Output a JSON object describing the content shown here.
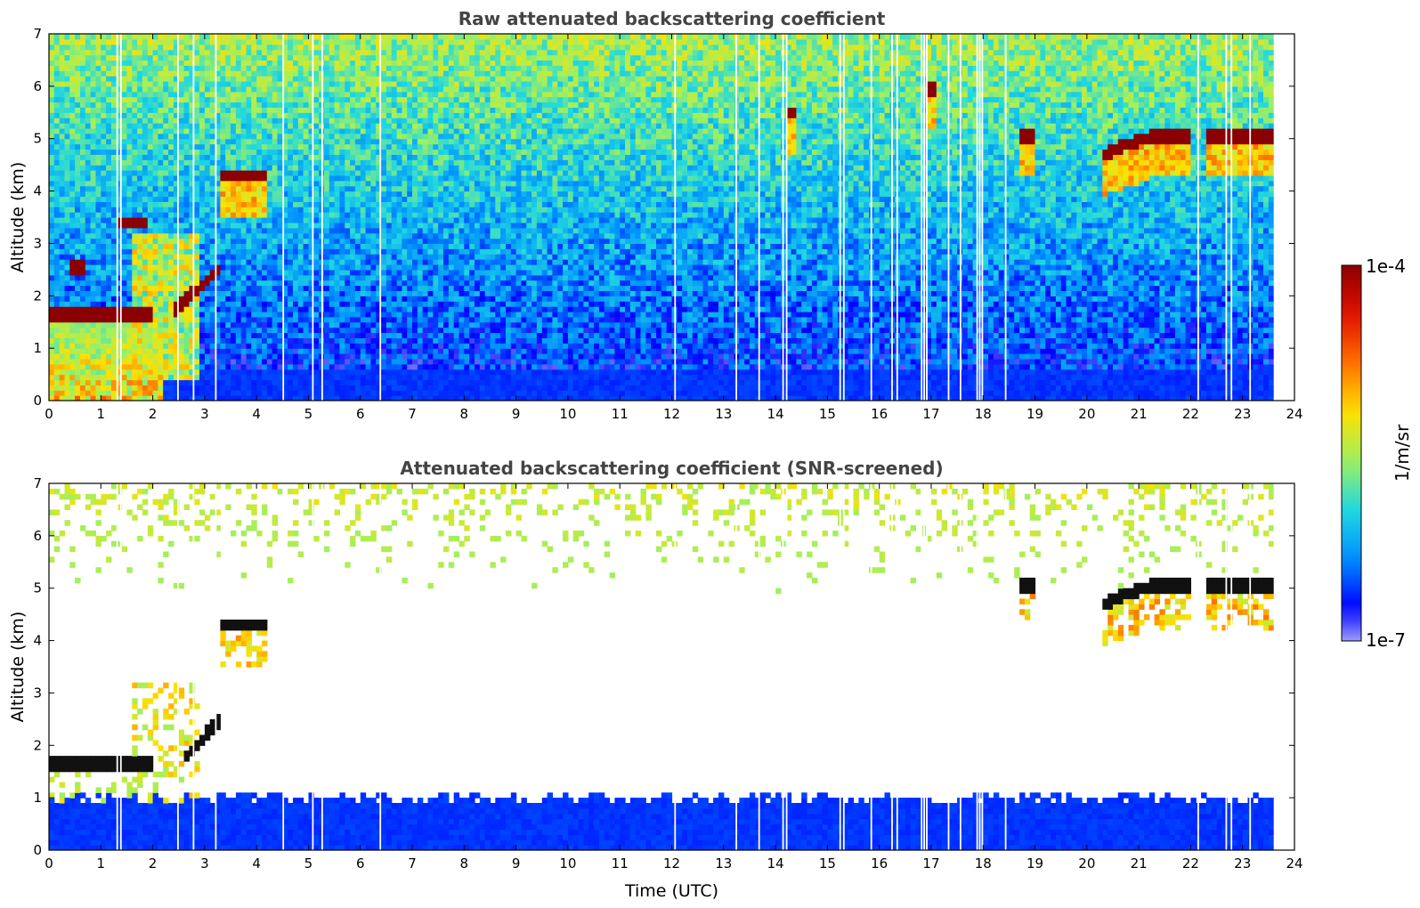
{
  "colors": {
    "scale": [
      "#e6e6f8",
      "#0000ff",
      "#0090ff",
      "#20d8e0",
      "#a0f060",
      "#ffe000",
      "#ff7000",
      "#e01000",
      "#8b0000"
    ],
    "cloud_core": "#8b0000",
    "screened_core": "#111111",
    "background": "#ffffff"
  },
  "chart_data": [
    {
      "type": "heatmap",
      "title": "Raw attenuated backscattering coefficient",
      "xlabel": "",
      "ylabel": "Altitude (km)",
      "xlim": [
        0,
        24
      ],
      "ylim": [
        0,
        7
      ],
      "xticks": [
        0,
        1,
        2,
        3,
        4,
        5,
        6,
        7,
        8,
        9,
        10,
        11,
        12,
        13,
        14,
        15,
        16,
        17,
        18,
        19,
        20,
        21,
        22,
        23,
        24
      ],
      "yticks": [
        0,
        1,
        2,
        3,
        4,
        5,
        6,
        7
      ],
      "data_end_hour": 23.6,
      "missing_profiles_hours": [
        1.3,
        1.37,
        2.47,
        2.77,
        3.2,
        4.5,
        5.07,
        5.25,
        6.37,
        12.05,
        13.23,
        13.67,
        14.13,
        14.2,
        15.23,
        15.3,
        15.83,
        16.23,
        16.33,
        16.8,
        16.85,
        16.9,
        17.32,
        17.55,
        17.87,
        17.92,
        17.97,
        18.42,
        22.13,
        22.67,
        22.77,
        23.13
      ],
      "cloud_layers": [
        {
          "t0": 0.0,
          "t1": 2.05,
          "z": 1.65,
          "intensity": "high"
        },
        {
          "t0": 2.4,
          "t1": 3.25,
          "z_start": 1.7,
          "z_end": 2.5,
          "intensity": "high"
        },
        {
          "t0": 3.3,
          "t1": 4.2,
          "z": 4.3,
          "intensity": "high"
        },
        {
          "t0": 1.3,
          "t1": 1.9,
          "z": 3.4,
          "intensity": "medium"
        },
        {
          "t0": 0.45,
          "t1": 0.65,
          "z": 2.55,
          "intensity": "medium"
        },
        {
          "t0": 18.75,
          "t1": 18.95,
          "z": 5.05,
          "intensity": "high"
        },
        {
          "t0": 20.35,
          "t1": 21.35,
          "z_start": 4.72,
          "z_end": 5.1,
          "intensity": "high"
        },
        {
          "t0": 21.35,
          "t1": 22.0,
          "z": 5.05,
          "intensity": "high"
        },
        {
          "t0": 22.3,
          "t1": 23.6,
          "z": 5.05,
          "intensity": "high"
        },
        {
          "t0": 16.9,
          "t1": 17.1,
          "z": 5.95,
          "intensity": "high"
        },
        {
          "t0": 14.25,
          "t1": 14.4,
          "z": 5.5,
          "intensity": "medium"
        }
      ],
      "colorbar": {
        "min_label": "1e-7",
        "max_label": "1e-4",
        "label": "1/m/sr",
        "scale": "log"
      }
    },
    {
      "type": "heatmap",
      "title": "Attenuated backscattering coefficient (SNR-screened)",
      "xlabel": "Time (UTC)",
      "ylabel": "Altitude (km)",
      "xlim": [
        0,
        24
      ],
      "ylim": [
        0,
        7
      ],
      "xticks": [
        0,
        1,
        2,
        3,
        4,
        5,
        6,
        7,
        8,
        9,
        10,
        11,
        12,
        13,
        14,
        15,
        16,
        17,
        18,
        19,
        20,
        21,
        22,
        23,
        24
      ],
      "yticks": [
        0,
        1,
        2,
        3,
        4,
        5,
        6,
        7
      ],
      "screened_boundary_layer_top_km": 1.0,
      "cloud_layers": [
        {
          "t0": 0.0,
          "t1": 2.05,
          "z": 1.65
        },
        {
          "t0": 2.6,
          "t1": 3.25,
          "z_start": 1.75,
          "z_end": 2.45
        },
        {
          "t0": 3.3,
          "t1": 4.15,
          "z": 4.3
        },
        {
          "t0": 18.7,
          "t1": 18.95,
          "z": 5.05
        },
        {
          "t0": 20.35,
          "t1": 21.35,
          "z_start": 4.72,
          "z_end": 5.1
        },
        {
          "t0": 21.35,
          "t1": 22.0,
          "z": 5.03
        },
        {
          "t0": 22.3,
          "t1": 23.6,
          "z": 5.03
        }
      ]
    }
  ]
}
